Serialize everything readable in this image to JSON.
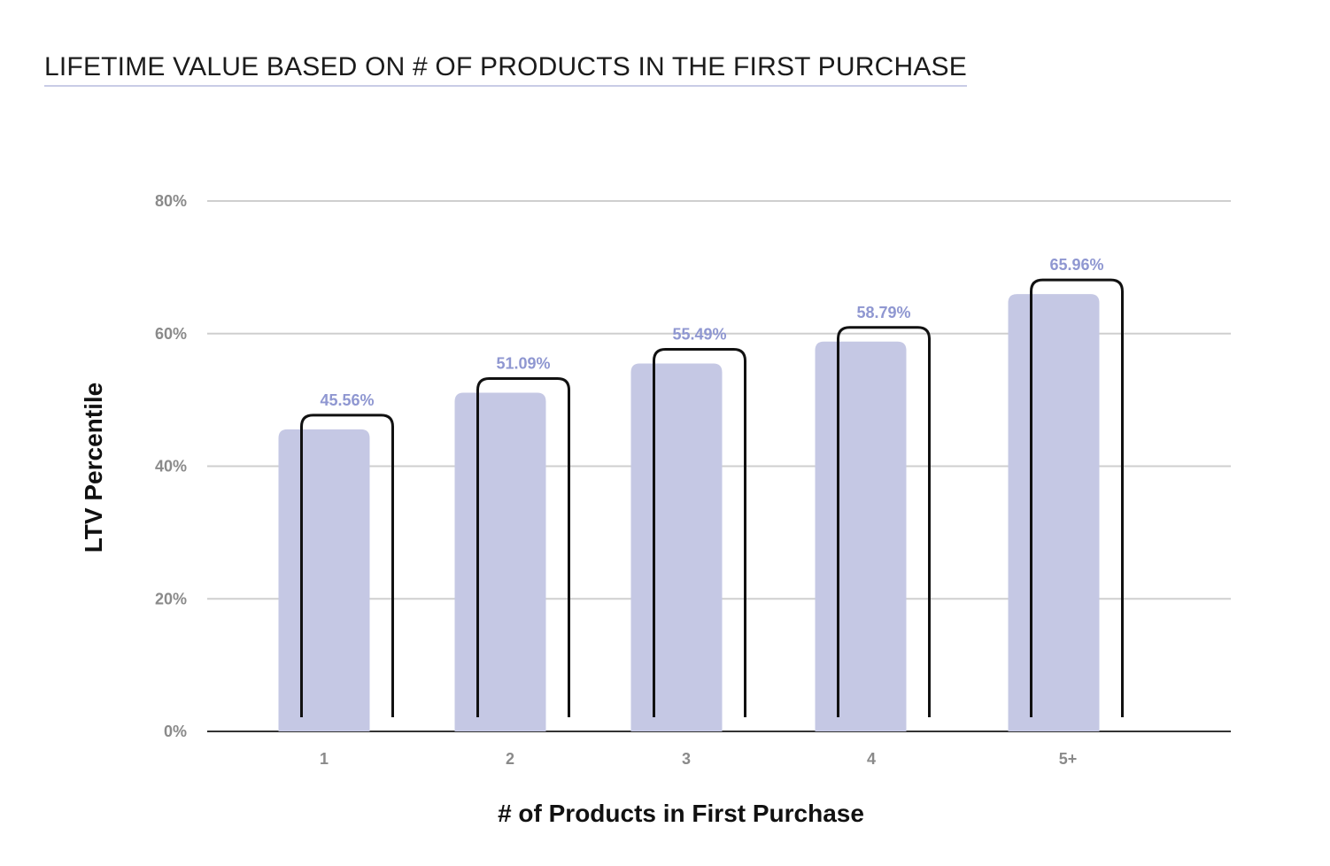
{
  "colors": {
    "bar": "#c5c8e4",
    "bracket": "#111111",
    "value_label": "#8f97d1",
    "grid": "#cfcfcf",
    "baseline": "#333333",
    "tick_label": "#8a8a8a",
    "title_underline": "#c9cce6"
  },
  "chart_data": {
    "type": "bar",
    "title": "LIFETIME VALUE BASED ON # OF PRODUCTS IN THE FIRST PURCHASE",
    "xlabel": "# of Products in First Purchase",
    "ylabel": "LTV Percentile",
    "categories": [
      "1",
      "2",
      "3",
      "4",
      "5+"
    ],
    "values": [
      45.56,
      51.09,
      55.49,
      58.79,
      65.96
    ],
    "value_labels": [
      "45.56%",
      "51.09%",
      "55.49%",
      "58.79%",
      "65.96%"
    ],
    "ylim": [
      0,
      80
    ],
    "yticks": [
      0,
      20,
      40,
      60,
      80
    ],
    "ytick_labels": [
      "0%",
      "20%",
      "40%",
      "60%",
      "80%"
    ],
    "grid": true,
    "legend": "none"
  }
}
